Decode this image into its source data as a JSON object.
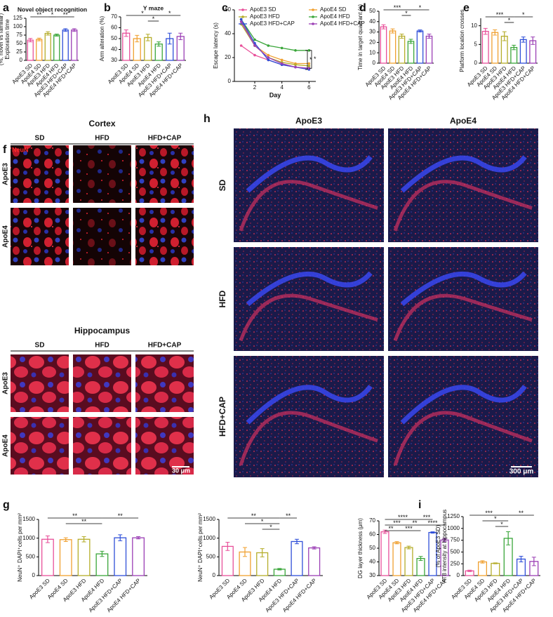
{
  "chart_data": [
    {
      "panel": "a",
      "type": "bar",
      "title": "Novel object recognition",
      "ylabel": [
        "Exploration time",
        "(%, novel vs familiar)"
      ],
      "categories": [
        "ApoE3 SD",
        "ApoE4 SD",
        "ApoE3 HFD",
        "ApoE4 HFD",
        "ApoE3 HFD+CAP",
        "ApoE4 HFD+CAP"
      ],
      "colors": [
        "#e8509a",
        "#f0a030",
        "#b5ad2a",
        "#3aa63a",
        "#2f4fd8",
        "#9b3fb5"
      ],
      "values": [
        60,
        62,
        80,
        75,
        90,
        90
      ],
      "errors": [
        5,
        4,
        5,
        3,
        4,
        4
      ],
      "ylim": [
        0,
        125
      ],
      "yticks": [
        0,
        25,
        50,
        75,
        100,
        125
      ],
      "annotations": [
        {
          "label": "**",
          "between": [
            "ApoE3 SD",
            "ApoE3 HFD"
          ]
        },
        {
          "label": "*",
          "between": [
            "ApoE3 HFD",
            "ApoE4 HFD"
          ]
        },
        {
          "label": "**",
          "between": [
            "ApoE4 HFD",
            "ApoE4 HFD+CAP"
          ]
        }
      ]
    },
    {
      "panel": "b",
      "type": "bar",
      "title": "Y maze",
      "ylabel": [
        "Arm alteration (%)"
      ],
      "categories": [
        "ApoE3 SD",
        "ApoE4 SD",
        "ApoE3 HFD",
        "ApoE4 HFD",
        "ApoE3 HFD+CAP",
        "ApoE4 HFD+CAP"
      ],
      "colors": [
        "#e8509a",
        "#f0a030",
        "#b5ad2a",
        "#3aa63a",
        "#2f4fd8",
        "#9b3fb5"
      ],
      "values": [
        55,
        50,
        51,
        45,
        50,
        52
      ],
      "errors": [
        3,
        3,
        3,
        2,
        5,
        3
      ],
      "ylim": [
        30,
        70
      ],
      "yticks": [
        30,
        40,
        50,
        60,
        70
      ],
      "annotations": [
        {
          "label": "*",
          "between": [
            "ApoE3 SD",
            "ApoE4 HFD"
          ]
        },
        {
          "label": "*",
          "between": [
            "ApoE3 HFD",
            "ApoE4 HFD"
          ]
        },
        {
          "label": "*",
          "between": [
            "ApoE4 HFD",
            "ApoE4 HFD+CAP"
          ]
        }
      ]
    },
    {
      "panel": "c",
      "type": "line",
      "ylabel": [
        "Escape latency (s)"
      ],
      "xlabel": "Day",
      "x": [
        1,
        2,
        3,
        4,
        5,
        6
      ],
      "xlim": [
        0.5,
        6.5
      ],
      "xticks": [
        2,
        4,
        6
      ],
      "ylim": [
        0,
        60
      ],
      "yticks": [
        0,
        20,
        40,
        60
      ],
      "series": [
        {
          "name": "ApoE3 SD",
          "color": "#e8509a",
          "values": [
            30,
            22,
            18,
            14,
            12,
            11
          ]
        },
        {
          "name": "ApoE4 SD",
          "color": "#f0a030",
          "values": [
            52,
            30,
            22,
            18,
            15,
            15
          ]
        },
        {
          "name": "ApoE3 HFD",
          "color": "#b5ad2a",
          "values": [
            48,
            30,
            20,
            16,
            14,
            13
          ]
        },
        {
          "name": "ApoE4 HFD",
          "color": "#3aa63a",
          "values": [
            52,
            35,
            30,
            28,
            26,
            26
          ]
        },
        {
          "name": "ApoE3 HFD+CAP",
          "color": "#2f4fd8",
          "values": [
            52,
            32,
            18,
            14,
            12,
            10
          ]
        },
        {
          "name": "ApoE4 HFD+CAP",
          "color": "#9b3fb5",
          "values": [
            50,
            30,
            20,
            15,
            12,
            11
          ]
        }
      ],
      "annotations": [
        "*",
        "*"
      ]
    },
    {
      "panel": "d",
      "type": "bar",
      "ylabel": [
        "Time in target quadrant (s)"
      ],
      "categories": [
        "ApoE3 SD",
        "ApoE4 SD",
        "ApoE3 HFD",
        "ApoE4 HFD",
        "ApoE3 HFD+CAP",
        "ApoE4 HFD+CAP"
      ],
      "colors": [
        "#e8509a",
        "#f0a030",
        "#b5ad2a",
        "#3aa63a",
        "#2f4fd8",
        "#9b3fb5"
      ],
      "values": [
        35,
        31,
        26,
        21,
        31,
        26
      ],
      "errors": [
        2,
        2,
        2,
        2,
        1,
        2
      ],
      "ylim": [
        0,
        50
      ],
      "yticks": [
        0,
        10,
        20,
        30,
        40,
        50
      ],
      "annotations": [
        {
          "label": "***",
          "between": [
            "ApoE3 SD",
            "ApoE4 HFD"
          ]
        },
        {
          "label": "*",
          "between": [
            "ApoE3 HFD",
            "ApoE4 HFD"
          ]
        },
        {
          "label": "*",
          "between": [
            "ApoE4 HFD",
            "ApoE4 HFD+CAP"
          ]
        }
      ]
    },
    {
      "panel": "e",
      "type": "bar",
      "ylabel": [
        "Platform location crosses"
      ],
      "categories": [
        "ApoE3 SD",
        "ApoE4 SD",
        "ApoE3 HFD",
        "ApoE4 HFD",
        "ApoE3 HFD+CAP",
        "ApoE4 HFD+CAP"
      ],
      "colors": [
        "#e8509a",
        "#f0a030",
        "#b5ad2a",
        "#3aa63a",
        "#2f4fd8",
        "#9b3fb5"
      ],
      "values": [
        8.5,
        8.2,
        7.2,
        4.2,
        6.3,
        6
      ],
      "errors": [
        0.8,
        0.7,
        1.2,
        0.6,
        0.7,
        1.0
      ],
      "ylim": [
        0,
        12
      ],
      "yticks": [
        0,
        5,
        10
      ],
      "annotations": [
        {
          "label": "***",
          "between": [
            "ApoE3 SD",
            "ApoE4 HFD"
          ]
        },
        {
          "label": "*",
          "between": [
            "ApoE3 HFD",
            "ApoE4 HFD"
          ]
        },
        {
          "label": "*",
          "between": [
            "ApoE4 HFD",
            "ApoE4 HFD+CAP"
          ]
        }
      ]
    },
    {
      "panel": "g",
      "type": "bar",
      "ylabel": [
        "NeuN⁺ DAPI⁺cells per mm²"
      ],
      "categories": [
        "ApoE3 SD",
        "ApoE4 SD",
        "ApoE3 HFD",
        "ApoE4 HFD",
        "ApoE3 HFD+CAP",
        "ApoE4 HFD+CAP"
      ],
      "colors": [
        "#e8509a",
        "#f0a030",
        "#b5ad2a",
        "#3aa63a",
        "#2f4fd8",
        "#9b3fb5"
      ],
      "values": [
        970,
        960,
        970,
        580,
        1010,
        1010
      ],
      "errors": [
        90,
        50,
        70,
        70,
        80,
        30
      ],
      "ylim": [
        0,
        1500
      ],
      "yticks": [
        0,
        500,
        1000,
        1500
      ],
      "annotations": [
        {
          "label": "**",
          "between": [
            "ApoE3 SD",
            "ApoE4 HFD"
          ]
        },
        {
          "label": "**",
          "between": [
            "ApoE4 SD",
            "ApoE4 HFD"
          ]
        },
        {
          "label": "**",
          "between": [
            "ApoE4 HFD",
            "ApoE4 HFD+CAP"
          ]
        }
      ]
    },
    {
      "type": "bar",
      "ylabel": [
        "NeuN⁺ DAPI⁺cells per mm²"
      ],
      "categories": [
        "ApoE3 SD",
        "ApoE4 SD",
        "ApoE3 HFD",
        "ApoE4 HFD",
        "ApoE3 HFD+CAP",
        "ApoE4 HFD+CAP"
      ],
      "colors": [
        "#e8509a",
        "#f0a030",
        "#b5ad2a",
        "#3aa63a",
        "#2f4fd8",
        "#9b3fb5"
      ],
      "values": [
        780,
        630,
        610,
        170,
        910,
        740
      ],
      "errors": [
        110,
        120,
        110,
        20,
        60,
        30
      ],
      "ylim": [
        0,
        1500
      ],
      "yticks": [
        0,
        500,
        1000,
        1500
      ],
      "annotations": [
        {
          "label": "**",
          "between": [
            "ApoE3 SD",
            "ApoE4 HFD"
          ]
        },
        {
          "label": "*",
          "between": [
            "ApoE4 SD",
            "ApoE4 HFD"
          ]
        },
        {
          "label": "*",
          "between": [
            "ApoE3 HFD",
            "ApoE4 HFD"
          ]
        },
        {
          "label": "**",
          "between": [
            "ApoE4 HFD",
            "ApoE3 HFD+CAP"
          ]
        }
      ]
    },
    {
      "type": "bar",
      "ylabel": [
        "DG layer thickness (μm)"
      ],
      "categories": [
        "ApoE3 SD",
        "ApoE4 SD",
        "ApoE3 HFD",
        "ApoE4 HFD",
        "ApoE3 HFD+CAP",
        "ApoE4 HFD+CAP"
      ],
      "colors": [
        "#e8509a",
        "#f0a030",
        "#b5ad2a",
        "#3aa63a",
        "#2f4fd8",
        "#9b3fb5"
      ],
      "values": [
        62,
        54,
        50.5,
        42.5,
        61.5,
        56
      ],
      "errors": [
        1.2,
        0.8,
        1,
        1.5,
        0.5,
        1.2
      ],
      "ylim": [
        30,
        70
      ],
      "yticks": [
        30,
        40,
        50,
        60,
        70
      ],
      "annotations": [
        {
          "label": "****",
          "between": [
            "ApoE3 SD",
            "ApoE4 HFD"
          ]
        },
        {
          "label": "***",
          "between": [
            "ApoE3 SD",
            "ApoE3 HFD"
          ]
        },
        {
          "label": "***",
          "between": [
            "ApoE4 SD",
            "ApoE4 HFD"
          ]
        },
        {
          "label": "**",
          "between": [
            "ApoE3 HFD",
            "ApoE4 HFD"
          ]
        },
        {
          "label": "**",
          "between": [
            "ApoE3 SD",
            "ApoE4 SD"
          ]
        },
        {
          "label": "***",
          "between": [
            "ApoE4 HFD",
            "ApoE3 HFD+CAP"
          ]
        },
        {
          "label": "****",
          "between": [
            "ApoE4 HFD",
            "ApoE4 HFD+CAP"
          ]
        }
      ]
    },
    {
      "panel": "i",
      "type": "bar",
      "ylabel": [
        "AT8 intensity at hippocampus",
        "(% of ApoE3 SD)"
      ],
      "categories": [
        "ApoE3 SD",
        "ApoE4 SD",
        "ApoE3 HFD",
        "ApoE4 HFD",
        "ApoE3 HFD+CAP",
        "ApoE4 HFD+CAP"
      ],
      "colors": [
        "#e8509a",
        "#f0a030",
        "#b5ad2a",
        "#3aa63a",
        "#2f4fd8",
        "#9b3fb5"
      ],
      "values": [
        100,
        290,
        260,
        790,
        350,
        300
      ],
      "errors": [
        15,
        25,
        10,
        140,
        60,
        90
      ],
      "ylim": [
        0,
        1250
      ],
      "yticks": [
        0,
        250,
        500,
        750,
        1000,
        1250
      ],
      "annotations": [
        {
          "label": "***",
          "between": [
            "ApoE3 SD",
            "ApoE4 HFD"
          ]
        },
        {
          "label": "*",
          "between": [
            "ApoE4 SD",
            "ApoE4 HFD"
          ]
        },
        {
          "label": "*",
          "between": [
            "ApoE3 HFD",
            "ApoE4 HFD"
          ]
        },
        {
          "label": "**",
          "between": [
            "ApoE4 HFD",
            "ApoE4 HFD+CAP"
          ]
        }
      ]
    }
  ],
  "image_panels": {
    "f": {
      "panel": "f",
      "cortex": {
        "title": "Cortex",
        "columns": [
          "SD",
          "HFD",
          "HFD+CAP"
        ],
        "rows": [
          "ApoE3",
          "ApoE4"
        ],
        "stain": "NeuN"
      },
      "hippocampus": {
        "title": "Hippocampus",
        "columns": [
          "SD",
          "HFD",
          "HFD+CAP"
        ],
        "rows": [
          "ApoE3",
          "ApoE4"
        ],
        "scale_bar": "30 μm"
      }
    },
    "h": {
      "panel": "h",
      "columns": [
        "ApoE3",
        "ApoE4"
      ],
      "rows": [
        "SD",
        "HFD",
        "HFD+CAP"
      ],
      "scale_bar": "300 μm"
    }
  }
}
